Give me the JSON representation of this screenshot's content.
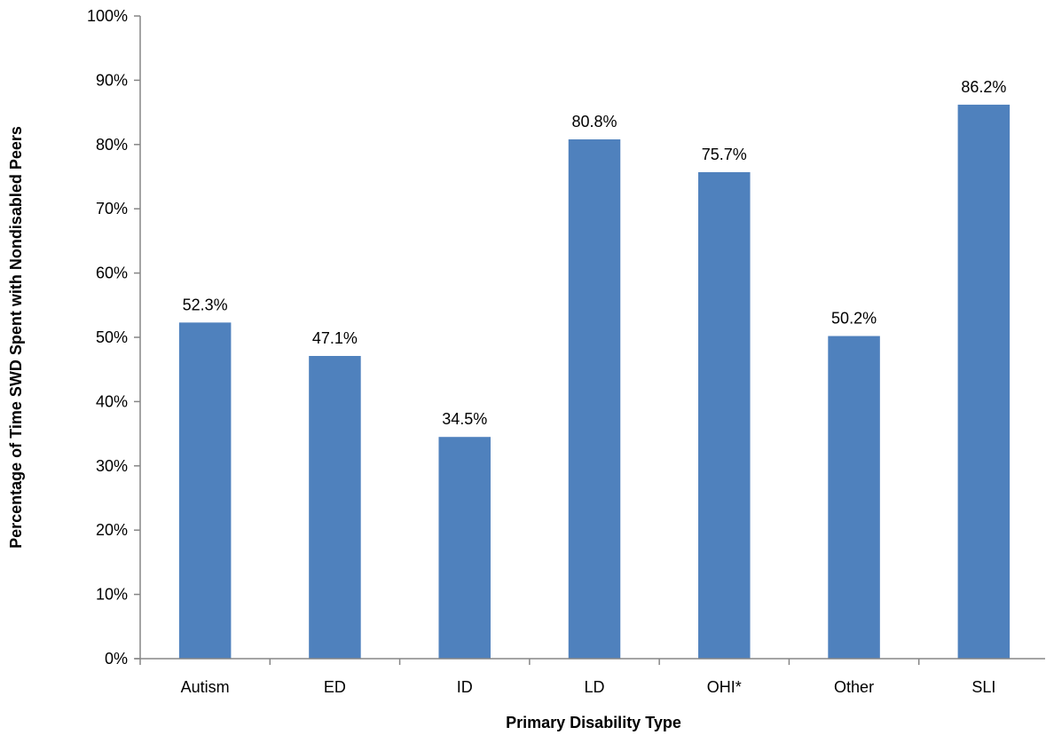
{
  "chart_data": {
    "type": "bar",
    "title": "",
    "xlabel": "Primary Disability Type",
    "ylabel": "Percentage of Time SWD Spent with Nondisabled Peers",
    "categories": [
      "Autism",
      "ED",
      "ID",
      "LD",
      "OHI*",
      "Other",
      "SLI"
    ],
    "values": [
      52.3,
      47.1,
      34.5,
      80.8,
      75.7,
      50.2,
      86.2
    ],
    "data_labels": [
      "52.3%",
      "47.1%",
      "34.5%",
      "80.8%",
      "75.7%",
      "50.2%",
      "86.2%"
    ],
    "ylim": [
      0,
      100
    ],
    "yticks": [
      0,
      10,
      20,
      30,
      40,
      50,
      60,
      70,
      80,
      90,
      100
    ],
    "ytick_labels": [
      "0%",
      "10%",
      "20%",
      "30%",
      "40%",
      "50%",
      "60%",
      "70%",
      "80%",
      "90%",
      "100%"
    ],
    "grid": false,
    "legend": "none",
    "bar_color": "#4F81BD",
    "axis_color": "#868686"
  }
}
